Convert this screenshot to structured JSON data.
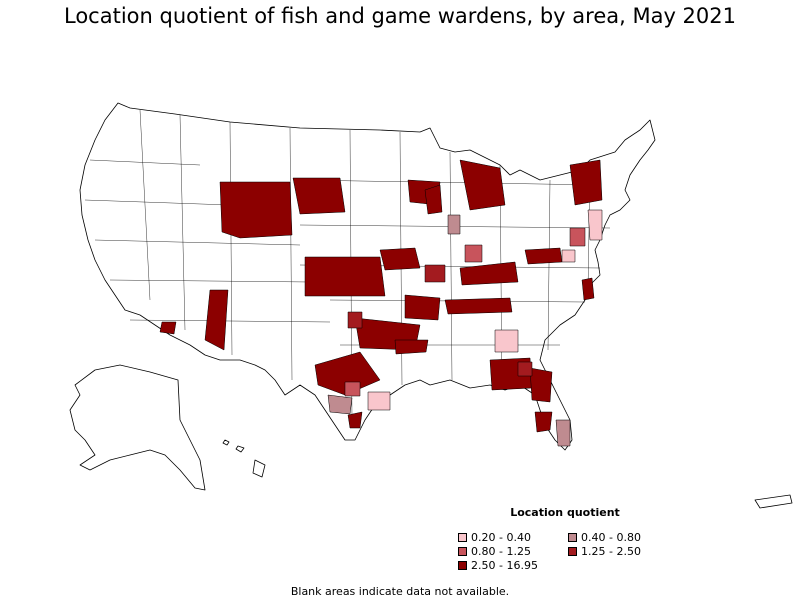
{
  "title": "Location quotient of fish and game wardens, by area, May 2021",
  "legend": {
    "title": "Location quotient",
    "items": [
      {
        "label": "0.20 - 0.40",
        "color": "#f9c6cc"
      },
      {
        "label": "0.40 - 0.80",
        "color": "#bf8b90"
      },
      {
        "label": "0.80 - 1.25",
        "color": "#c8545c"
      },
      {
        "label": "1.25 - 2.50",
        "color": "#a31b1f"
      },
      {
        "label": "2.50 - 16.95",
        "color": "#8c0000"
      }
    ]
  },
  "footnote": "Blank areas indicate data not available.",
  "map_style": {
    "land": "#ffffff",
    "border": "#000000"
  }
}
